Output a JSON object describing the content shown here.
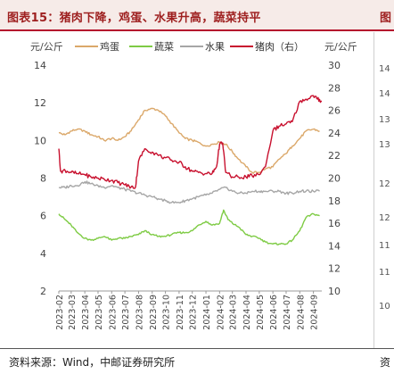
{
  "header": {
    "title": "图表15：猪肉下降，鸡蛋、水果升高，蔬菜持平",
    "next_title_fragment": "图"
  },
  "footer": {
    "source": "资料来源：Wind，中邮证券研究所",
    "next_source_fragment": "资"
  },
  "next_panel_ticks": [
    "14",
    "14",
    "13",
    "13",
    "12",
    "12",
    "11",
    "11",
    "10"
  ],
  "chart_data": {
    "type": "line",
    "left_unit": "元/公斤",
    "right_unit": "元/公斤",
    "legend": [
      "鸡蛋",
      "蔬菜",
      "水果",
      "猪肉（右）"
    ],
    "ylim_left": [
      2,
      14
    ],
    "ylim_right": [
      10,
      30
    ],
    "yticks_left": [
      "14",
      "12",
      "10",
      "8",
      "6",
      "4",
      "2"
    ],
    "yticks_right": [
      "30",
      "28",
      "26",
      "24",
      "22",
      "20",
      "18",
      "16",
      "14",
      "12",
      "10"
    ],
    "x_ticks": [
      "2023-02",
      "2023-03",
      "2023-04",
      "2023-05",
      "2023-06",
      "2023-07",
      "2023-08",
      "2023-09",
      "2023-10",
      "2023-11",
      "2023-12",
      "2024-01",
      "2024-02",
      "2024-03",
      "2024-04",
      "2024-05",
      "2024-06",
      "2024-07",
      "2024-08",
      "2024-09"
    ],
    "x_start": "2023-02-01",
    "x_end": "2024-09-20",
    "colors": {
      "egg": "#dba86a",
      "veg": "#7ecb44",
      "fruit": "#a6a6a6",
      "pork": "#c8102e"
    },
    "series": [
      {
        "name": "鸡蛋",
        "axis": "left",
        "x": [
          "2023-02-01",
          "2023-02-15",
          "2023-03-01",
          "2023-03-15",
          "2023-04-01",
          "2023-04-15",
          "2023-05-01",
          "2023-05-15",
          "2023-06-01",
          "2023-06-15",
          "2023-07-01",
          "2023-07-15",
          "2023-08-01",
          "2023-08-15",
          "2023-09-01",
          "2023-09-15",
          "2023-10-01",
          "2023-10-15",
          "2023-11-01",
          "2023-11-15",
          "2023-12-01",
          "2023-12-15",
          "2024-01-01",
          "2024-01-15",
          "2024-02-01",
          "2024-02-15",
          "2024-03-01",
          "2024-03-15",
          "2024-04-01",
          "2024-04-15",
          "2024-05-01",
          "2024-05-15",
          "2024-06-01",
          "2024-06-15",
          "2024-07-01",
          "2024-07-15",
          "2024-08-01",
          "2024-08-15",
          "2024-09-01",
          "2024-09-15"
        ],
        "values": [
          10.4,
          10.3,
          10.5,
          10.6,
          10.5,
          10.3,
          10.2,
          10.0,
          10.1,
          10.0,
          10.2,
          10.5,
          11.1,
          11.6,
          11.7,
          11.6,
          11.3,
          10.9,
          10.4,
          10.1,
          10.0,
          9.9,
          9.7,
          9.8,
          9.9,
          9.8,
          9.4,
          9.0,
          8.6,
          8.3,
          8.3,
          8.5,
          8.6,
          9.0,
          9.3,
          9.7,
          10.1,
          10.5,
          10.6,
          10.5
        ]
      },
      {
        "name": "蔬菜",
        "axis": "left",
        "x": [
          "2023-02-01",
          "2023-02-15",
          "2023-03-01",
          "2023-03-15",
          "2023-04-01",
          "2023-04-15",
          "2023-05-01",
          "2023-05-15",
          "2023-06-01",
          "2023-06-15",
          "2023-07-01",
          "2023-07-15",
          "2023-08-01",
          "2023-08-15",
          "2023-09-01",
          "2023-09-15",
          "2023-10-01",
          "2023-10-15",
          "2023-11-01",
          "2023-11-15",
          "2023-12-01",
          "2023-12-15",
          "2024-01-01",
          "2024-01-15",
          "2024-02-01",
          "2024-02-10",
          "2024-02-20",
          "2024-03-01",
          "2024-03-15",
          "2024-04-01",
          "2024-04-15",
          "2024-05-01",
          "2024-05-15",
          "2024-06-01",
          "2024-06-15",
          "2024-07-01",
          "2024-07-15",
          "2024-08-01",
          "2024-08-15",
          "2024-09-01",
          "2024-09-15"
        ],
        "values": [
          6.1,
          5.8,
          5.5,
          5.1,
          4.8,
          4.7,
          4.8,
          4.9,
          4.7,
          4.8,
          4.8,
          4.9,
          5.0,
          5.2,
          5.0,
          4.9,
          4.9,
          5.0,
          5.1,
          5.1,
          5.2,
          5.5,
          5.7,
          5.5,
          5.6,
          6.3,
          5.8,
          5.6,
          5.4,
          5.0,
          4.9,
          4.8,
          4.6,
          4.5,
          4.5,
          4.5,
          4.7,
          5.2,
          5.9,
          6.1,
          6.0
        ]
      },
      {
        "name": "水果",
        "axis": "left",
        "x": [
          "2023-02-01",
          "2023-02-15",
          "2023-03-01",
          "2023-03-15",
          "2023-04-01",
          "2023-04-15",
          "2023-05-01",
          "2023-05-15",
          "2023-06-01",
          "2023-06-15",
          "2023-07-01",
          "2023-07-15",
          "2023-08-01",
          "2023-08-15",
          "2023-09-01",
          "2023-09-15",
          "2023-10-01",
          "2023-10-15",
          "2023-11-01",
          "2023-11-15",
          "2023-12-01",
          "2023-12-15",
          "2024-01-01",
          "2024-01-15",
          "2024-02-01",
          "2024-02-15",
          "2024-03-01",
          "2024-03-15",
          "2024-04-01",
          "2024-04-15",
          "2024-05-01",
          "2024-05-15",
          "2024-06-01",
          "2024-06-15",
          "2024-07-01",
          "2024-07-15",
          "2024-08-01",
          "2024-08-15",
          "2024-09-01",
          "2024-09-15"
        ],
        "values": [
          7.5,
          7.5,
          7.6,
          7.6,
          7.8,
          7.7,
          7.6,
          7.5,
          7.6,
          7.5,
          7.4,
          7.3,
          7.2,
          7.1,
          7.0,
          6.9,
          6.8,
          6.7,
          6.7,
          6.8,
          6.9,
          7.0,
          7.1,
          7.2,
          7.4,
          7.5,
          7.3,
          7.2,
          7.2,
          7.3,
          7.3,
          7.3,
          7.3,
          7.3,
          7.2,
          7.2,
          7.3,
          7.3,
          7.3,
          7.3
        ]
      },
      {
        "name": "猪肉（右）",
        "axis": "right",
        "x": [
          "2023-02-01",
          "2023-02-05",
          "2023-02-15",
          "2023-03-01",
          "2023-03-15",
          "2023-04-01",
          "2023-04-15",
          "2023-05-01",
          "2023-05-15",
          "2023-06-01",
          "2023-06-15",
          "2023-07-01",
          "2023-07-15",
          "2023-07-25",
          "2023-08-01",
          "2023-08-15",
          "2023-09-01",
          "2023-09-15",
          "2023-10-01",
          "2023-10-15",
          "2023-11-01",
          "2023-11-15",
          "2023-12-01",
          "2023-12-15",
          "2024-01-01",
          "2024-01-15",
          "2024-01-25",
          "2024-02-01",
          "2024-02-08",
          "2024-02-15",
          "2024-03-01",
          "2024-03-15",
          "2024-04-01",
          "2024-04-15",
          "2024-05-01",
          "2024-05-15",
          "2024-06-01",
          "2024-06-15",
          "2024-07-01",
          "2024-07-15",
          "2024-08-01",
          "2024-08-15",
          "2024-09-01",
          "2024-09-10",
          "2024-09-20"
        ],
        "values": [
          22.6,
          20.6,
          20.7,
          20.5,
          20.4,
          20.3,
          20.1,
          20.0,
          19.9,
          19.8,
          19.6,
          19.4,
          19.2,
          19.2,
          21.5,
          22.6,
          22.3,
          22.0,
          21.8,
          21.6,
          21.4,
          21.0,
          20.6,
          20.5,
          20.4,
          20.4,
          21.0,
          23.0,
          23.1,
          20.5,
          20.1,
          20.1,
          20.1,
          20.2,
          20.3,
          21.0,
          24.2,
          24.6,
          24.8,
          25.0,
          26.8,
          27.0,
          27.3,
          27.0,
          26.8
        ]
      }
    ]
  }
}
